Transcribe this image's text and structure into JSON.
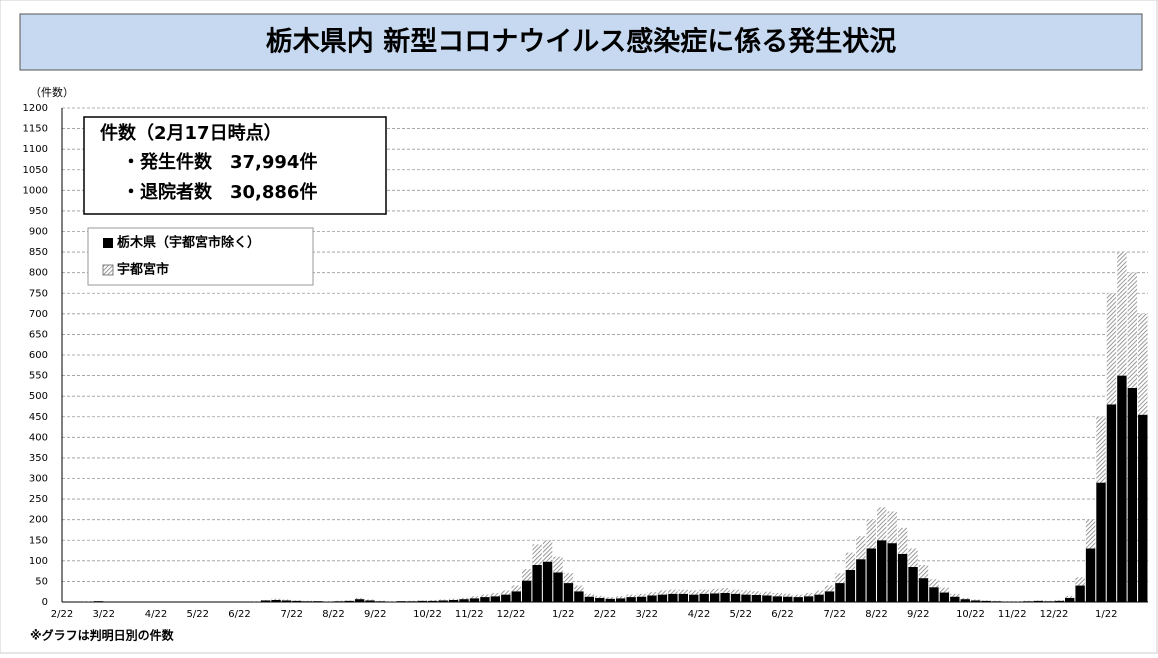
{
  "chart_data": {
    "type": "stacked_bar",
    "title": "栃木県内 新型コロナウイルス感染症に係る発生状況",
    "y_label": "（件数）",
    "note": "※グラフは判明日別の件数",
    "annotations": [
      "件数（2月17日時点）",
      "・発生件数　37,994件",
      "・退院者数　30,886件"
    ],
    "categories": [
      "2/22",
      null,
      null,
      null,
      "3/22",
      null,
      null,
      null,
      null,
      "4/22",
      null,
      null,
      null,
      "5/22",
      null,
      null,
      null,
      "6/22",
      null,
      null,
      null,
      null,
      "7/22",
      null,
      null,
      null,
      "8/22",
      null,
      null,
      null,
      "9/22",
      null,
      null,
      null,
      null,
      "10/22",
      null,
      null,
      null,
      "11/22",
      null,
      null,
      null,
      "12/22",
      null,
      null,
      null,
      null,
      "1/22",
      null,
      null,
      null,
      "2/22",
      null,
      null,
      null,
      "3/22",
      null,
      null,
      null,
      null,
      "4/22",
      null,
      null,
      null,
      "5/22",
      null,
      null,
      null,
      "6/22",
      null,
      null,
      null,
      null,
      "7/22",
      null,
      null,
      null,
      "8/22",
      null,
      null,
      null,
      "9/22",
      null,
      null,
      null,
      null,
      "10/22",
      null,
      null,
      null,
      "11/22",
      null,
      null,
      null,
      "12/22",
      null,
      null,
      null,
      null,
      "1/22",
      null,
      null,
      null
    ],
    "series": [
      {
        "name": "栃木県（宇都宮市除く）",
        "color": "#000000",
        "pattern": "solid",
        "values": [
          0,
          1,
          1,
          2,
          1,
          1,
          0,
          0,
          0,
          0,
          0,
          0,
          0,
          0,
          0,
          0,
          0,
          1,
          1,
          4,
          5,
          4,
          3,
          2,
          2,
          1,
          2,
          3,
          7,
          4,
          2,
          1,
          2,
          2,
          3,
          3,
          4,
          5,
          7,
          9,
          12,
          14,
          18,
          26,
          52,
          90,
          98,
          72,
          46,
          26,
          13,
          10,
          8,
          9,
          12,
          13,
          16,
          18,
          20,
          20,
          18,
          20,
          21,
          22,
          20,
          18,
          17,
          16,
          14,
          13,
          12,
          14,
          18,
          26,
          46,
          78,
          104,
          130,
          150,
          143,
          117,
          85,
          58,
          36,
          23,
          13,
          7,
          4,
          3,
          2,
          1,
          1,
          2,
          3,
          2,
          3,
          10,
          40,
          130,
          290,
          480,
          550,
          520,
          455
        ]
      },
      {
        "name": "宇都宮市",
        "color": "#808080",
        "pattern": "hatch",
        "values": [
          0,
          0,
          1,
          0,
          0,
          0,
          0,
          0,
          0,
          0,
          0,
          0,
          0,
          0,
          0,
          0,
          0,
          0,
          1,
          1,
          3,
          2,
          1,
          1,
          0,
          1,
          1,
          1,
          3,
          2,
          1,
          1,
          0,
          1,
          1,
          2,
          2,
          3,
          3,
          5,
          6,
          8,
          10,
          14,
          28,
          50,
          52,
          38,
          24,
          14,
          7,
          5,
          4,
          5,
          6,
          7,
          8,
          10,
          10,
          10,
          10,
          10,
          11,
          12,
          10,
          10,
          9,
          9,
          8,
          7,
          6,
          8,
          10,
          14,
          24,
          42,
          56,
          70,
          80,
          77,
          63,
          45,
          32,
          19,
          12,
          7,
          3,
          2,
          1,
          1,
          1,
          1,
          1,
          1,
          1,
          2,
          5,
          20,
          70,
          160,
          270,
          300,
          280,
          245
        ]
      }
    ],
    "ylim": [
      0,
      1200
    ],
    "yticks": [
      0,
      50,
      100,
      150,
      200,
      250,
      300,
      350,
      400,
      450,
      500,
      550,
      600,
      650,
      700,
      750,
      800,
      850,
      900,
      950,
      1000,
      1050,
      1100,
      1150,
      1200
    ],
    "grid": true
  }
}
